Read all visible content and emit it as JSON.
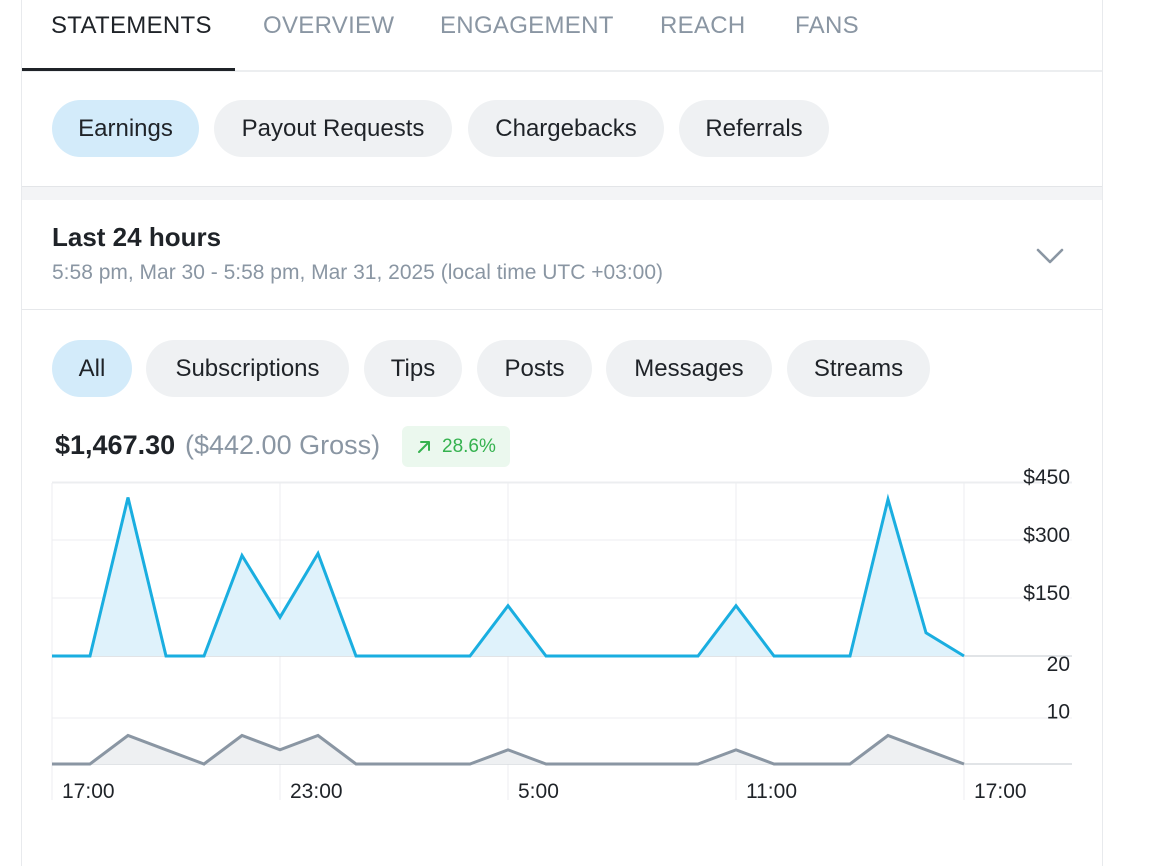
{
  "tabs": [
    "STATEMENTS",
    "OVERVIEW",
    "ENGAGEMENT",
    "REACH",
    "FANS"
  ],
  "active_tab": "STATEMENTS",
  "statement_types": [
    "Earnings",
    "Payout Requests",
    "Chargebacks",
    "Referrals"
  ],
  "active_statement_type": "Earnings",
  "period": {
    "title": "Last 24 hours",
    "range": "5:58 pm, Mar 30 - 5:58 pm, Mar 31, 2025 (local time UTC +03:00)",
    "toggle_icon": "chevron-down-icon"
  },
  "filters": [
    "All",
    "Subscriptions",
    "Tips",
    "Posts",
    "Messages",
    "Streams"
  ],
  "active_filter": "All",
  "summary": {
    "net": "$1,467.30",
    "gross": "($442.00 Gross)",
    "change": "28.6%",
    "change_icon": "arrow-up-right-icon",
    "change_color": "#35b24f"
  },
  "colors": {
    "accent": "#1aaee0",
    "accent_fill": "#dff2fb",
    "count_line": "#8a96a3",
    "active_pill": "#d3ebfa"
  },
  "chart_data": {
    "type": "area",
    "x_labels": [
      "17:00",
      "23:00",
      "5:00",
      "11:00",
      "17:00"
    ],
    "series": [
      {
        "values": [
          0,
          0,
          410,
          0,
          0,
          260,
          100,
          265,
          0,
          0,
          0,
          0,
          130,
          0,
          0,
          0,
          0,
          0,
          130,
          0,
          0,
          0,
          405,
          60,
          0
        ],
        "y_ticks": [
          "$150",
          "$300",
          "$450"
        ],
        "ylim": [
          0,
          450
        ]
      },
      {
        "values": [
          0,
          0,
          6,
          3,
          0,
          6,
          3,
          6,
          0,
          0,
          0,
          0,
          3,
          0,
          0,
          0,
          0,
          0,
          3,
          0,
          0,
          0,
          6,
          3,
          0
        ],
        "y_ticks": [
          "10",
          "20"
        ],
        "ylim": [
          0,
          20
        ]
      }
    ]
  }
}
